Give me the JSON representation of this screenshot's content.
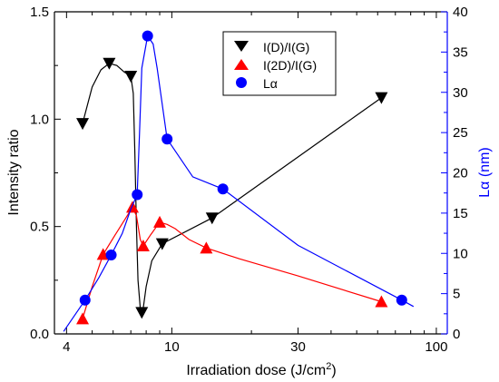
{
  "chart_data": {
    "type": "line",
    "xlabel": "Irradiation dose (J/cm",
    "xlabel_sup": "2",
    "xlabel_end": ")",
    "ylabel_left": "Intensity ratio",
    "ylabel_right": "Lα (nm)",
    "x_scale": "log",
    "xlim": [
      3.6,
      110
    ],
    "ylim_left": [
      0,
      1.5
    ],
    "ylim_right": [
      0,
      40
    ],
    "x_ticks": [
      {
        "value": 4,
        "label": "4"
      },
      {
        "value": 10,
        "label": "10"
      },
      {
        "value": 30,
        "label": "30"
      },
      {
        "value": 100,
        "label": "100"
      }
    ],
    "y_left_ticks": [
      {
        "value": 0,
        "label": "0.0"
      },
      {
        "value": 0.5,
        "label": "0.5"
      },
      {
        "value": 1.0,
        "label": "1.0"
      },
      {
        "value": 1.5,
        "label": "1.5"
      }
    ],
    "y_right_ticks": [
      {
        "value": 0,
        "label": "0"
      },
      {
        "value": 5,
        "label": "5"
      },
      {
        "value": 10,
        "label": "10"
      },
      {
        "value": 15,
        "label": "15"
      },
      {
        "value": 20,
        "label": "20"
      },
      {
        "value": 25,
        "label": "25"
      },
      {
        "value": 30,
        "label": "30"
      },
      {
        "value": 35,
        "label": "35"
      },
      {
        "value": 40,
        "label": "40"
      }
    ],
    "legend_position": "top-right-inside",
    "series": [
      {
        "name": "I(D)/I(G)",
        "axis": "left",
        "marker": "triangle-down",
        "color": "#000000",
        "points": [
          [
            4.6,
            0.98
          ],
          [
            5.8,
            1.26
          ],
          [
            7.0,
            1.2
          ],
          [
            7.7,
            0.1
          ],
          [
            9.2,
            0.42
          ],
          [
            14.2,
            0.54
          ],
          [
            62,
            1.1
          ]
        ],
        "curve": [
          [
            4.6,
            0.98
          ],
          [
            5.0,
            1.15
          ],
          [
            5.4,
            1.23
          ],
          [
            5.8,
            1.26
          ],
          [
            6.2,
            1.25
          ],
          [
            6.6,
            1.22
          ],
          [
            7.0,
            1.2
          ],
          [
            7.15,
            1.12
          ],
          [
            7.25,
            0.85
          ],
          [
            7.35,
            0.5
          ],
          [
            7.45,
            0.25
          ],
          [
            7.6,
            0.12
          ],
          [
            7.7,
            0.1
          ],
          [
            7.8,
            0.12
          ],
          [
            8.0,
            0.22
          ],
          [
            8.4,
            0.34
          ],
          [
            9.2,
            0.42
          ],
          [
            14.2,
            0.54
          ],
          [
            62,
            1.1
          ]
        ]
      },
      {
        "name": "I(2D)/I(G)",
        "axis": "left",
        "marker": "triangle-up",
        "color": "#ff0000",
        "points": [
          [
            4.6,
            0.07
          ],
          [
            5.5,
            0.37
          ],
          [
            7.1,
            0.59
          ],
          [
            7.8,
            0.41
          ],
          [
            9.0,
            0.52
          ],
          [
            13.5,
            0.4
          ],
          [
            62,
            0.15
          ]
        ],
        "curve": [
          [
            4.6,
            0.07
          ],
          [
            5.0,
            0.22
          ],
          [
            5.5,
            0.37
          ],
          [
            6.1,
            0.46
          ],
          [
            6.7,
            0.54
          ],
          [
            7.1,
            0.59
          ],
          [
            7.35,
            0.55
          ],
          [
            7.6,
            0.44
          ],
          [
            7.8,
            0.41
          ],
          [
            8.3,
            0.46
          ],
          [
            9.0,
            0.52
          ],
          [
            9.6,
            0.51
          ],
          [
            10.3,
            0.49
          ],
          [
            11.6,
            0.44
          ],
          [
            13.5,
            0.4
          ],
          [
            18,
            0.35
          ],
          [
            30,
            0.27
          ],
          [
            62,
            0.15
          ]
        ]
      },
      {
        "name": "Lα",
        "axis": "right",
        "marker": "circle",
        "color": "#0000ff",
        "points": [
          [
            4.7,
            4.2
          ],
          [
            5.9,
            9.8
          ],
          [
            7.4,
            17.3
          ],
          [
            8.1,
            37
          ],
          [
            9.6,
            24.2
          ],
          [
            15.6,
            18
          ],
          [
            74,
            4.2
          ]
        ],
        "curve": [
          [
            3.9,
            0.3
          ],
          [
            4.7,
            4.2
          ],
          [
            5.3,
            7.0
          ],
          [
            5.9,
            9.8
          ],
          [
            6.5,
            12.5
          ],
          [
            7.0,
            15.5
          ],
          [
            7.4,
            17.3
          ],
          [
            7.55,
            25
          ],
          [
            7.7,
            33
          ],
          [
            8.1,
            37
          ],
          [
            8.5,
            36
          ],
          [
            8.8,
            33
          ],
          [
            9.6,
            24.2
          ],
          [
            12.0,
            19.5
          ],
          [
            15.6,
            18
          ],
          [
            30,
            11
          ],
          [
            74,
            4.2
          ],
          [
            82,
            3.4
          ]
        ]
      }
    ]
  }
}
